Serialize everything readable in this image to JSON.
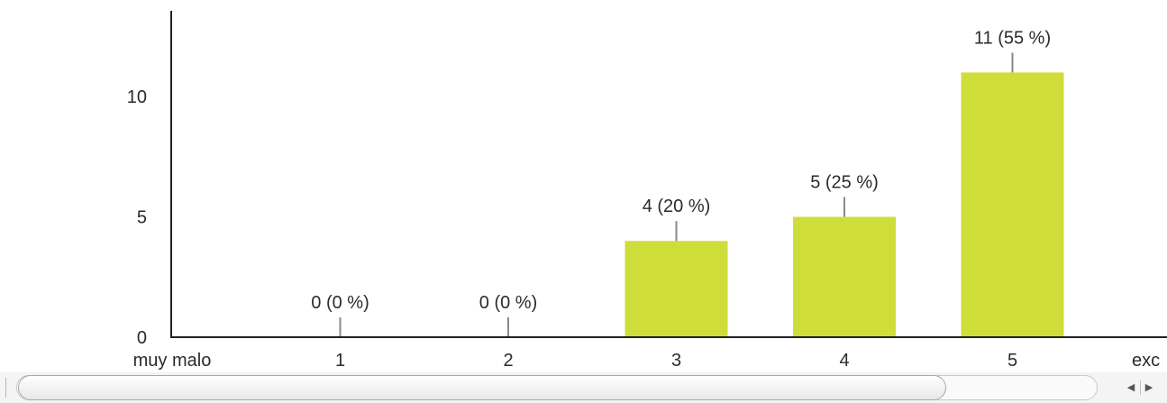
{
  "chart_data": {
    "type": "bar",
    "categories": [
      "muy malo",
      "1",
      "2",
      "3",
      "4",
      "5",
      "exc"
    ],
    "values": [
      null,
      0,
      0,
      4,
      5,
      11,
      null
    ],
    "data_labels": [
      "",
      "0 (0 %)",
      "0 (0 %)",
      "4 (20 %)",
      "5 (25 %)",
      "11 (55 %)",
      ""
    ],
    "yticks": [
      "0",
      "5",
      "10"
    ],
    "ytick_values": [
      0,
      5,
      10
    ],
    "ylim": [
      0,
      13
    ],
    "title": "",
    "xlabel": "",
    "ylabel": "",
    "grid": false,
    "bar_color": "#cfdd3a",
    "axis_color": "#222222",
    "leader_color": "#8a8a8a"
  },
  "scrollbar": {
    "left_arrow_icon": "left-arrow-icon",
    "right_arrow_icon": "right-arrow-icon",
    "left_arrow": "◀",
    "right_arrow": "▶"
  }
}
